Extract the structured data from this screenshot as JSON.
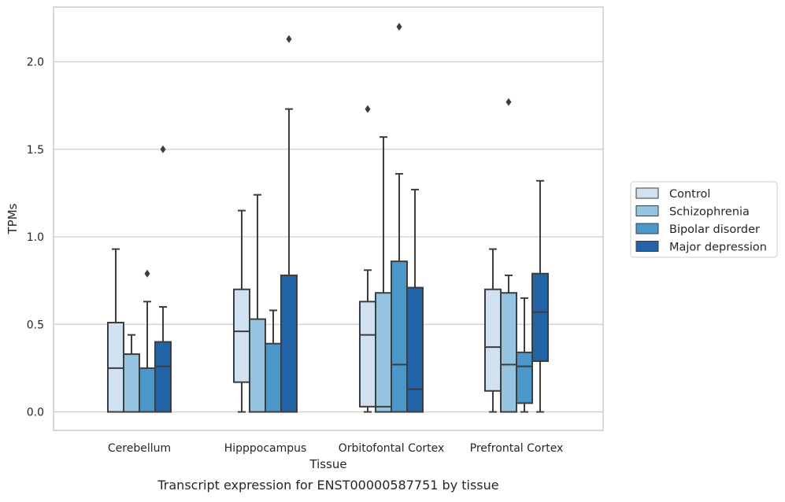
{
  "chart_data": {
    "type": "box",
    "caption": "Transcript expression for ENST00000587751 by tissue",
    "xlabel": "Tissue",
    "ylabel": "TPMs",
    "ylim": [
      -0.1,
      2.33
    ],
    "yticks": [
      0.0,
      0.5,
      1.0,
      1.5,
      2.0
    ],
    "ytick_labels": [
      "0.0",
      "0.5",
      "1.0",
      "1.5",
      "2.0"
    ],
    "grid": "horizontal",
    "legend_position": "right",
    "categories": [
      "Cerebellum",
      "Hipppocampus",
      "Orbitofontal Cortex",
      "Prefrontal Cortex"
    ],
    "series": [
      {
        "name": "Control",
        "color": "#d0e1f2",
        "boxes": [
          {
            "min": 0.0,
            "q1": 0.0,
            "median": 0.25,
            "q3": 0.51,
            "max": 0.93,
            "outliers": []
          },
          {
            "min": 0.0,
            "q1": 0.17,
            "median": 0.46,
            "q3": 0.7,
            "max": 1.15,
            "outliers": []
          },
          {
            "min": 0.0,
            "q1": 0.03,
            "median": 0.44,
            "q3": 0.63,
            "max": 0.81,
            "outliers": [
              1.73
            ]
          },
          {
            "min": 0.0,
            "q1": 0.12,
            "median": 0.37,
            "q3": 0.7,
            "max": 0.93,
            "outliers": []
          }
        ]
      },
      {
        "name": "Schizophrenia",
        "color": "#94c4df",
        "boxes": [
          {
            "min": 0.0,
            "q1": 0.0,
            "median": 0.0,
            "q3": 0.33,
            "max": 0.44,
            "outliers": []
          },
          {
            "min": 0.0,
            "q1": 0.0,
            "median": 0.0,
            "q3": 0.53,
            "max": 1.24,
            "outliers": []
          },
          {
            "min": 0.0,
            "q1": 0.0,
            "median": 0.03,
            "q3": 0.68,
            "max": 1.57,
            "outliers": []
          },
          {
            "min": 0.0,
            "q1": 0.0,
            "median": 0.27,
            "q3": 0.68,
            "max": 0.78,
            "outliers": [
              1.77
            ]
          }
        ]
      },
      {
        "name": "Bipolar disorder",
        "color": "#4a98c9",
        "boxes": [
          {
            "min": 0.0,
            "q1": 0.0,
            "median": 0.0,
            "q3": 0.25,
            "max": 0.63,
            "outliers": [
              0.79
            ]
          },
          {
            "min": 0.0,
            "q1": 0.0,
            "median": 0.0,
            "q3": 0.39,
            "max": 0.58,
            "outliers": []
          },
          {
            "min": 0.0,
            "q1": 0.0,
            "median": 0.27,
            "q3": 0.86,
            "max": 1.36,
            "outliers": [
              2.2
            ]
          },
          {
            "min": 0.0,
            "q1": 0.05,
            "median": 0.26,
            "q3": 0.34,
            "max": 0.65,
            "outliers": []
          }
        ]
      },
      {
        "name": "Major depression",
        "color": "#2363a8",
        "boxes": [
          {
            "min": 0.0,
            "q1": 0.0,
            "median": 0.26,
            "q3": 0.4,
            "max": 0.6,
            "outliers": [
              1.5
            ]
          },
          {
            "min": 0.0,
            "q1": 0.0,
            "median": 0.0,
            "q3": 0.78,
            "max": 1.73,
            "outliers": [
              2.13
            ]
          },
          {
            "min": 0.0,
            "q1": 0.0,
            "median": 0.13,
            "q3": 0.71,
            "max": 1.27,
            "outliers": []
          },
          {
            "min": 0.0,
            "q1": 0.29,
            "median": 0.57,
            "q3": 0.79,
            "max": 1.32,
            "outliers": []
          }
        ]
      }
    ]
  }
}
